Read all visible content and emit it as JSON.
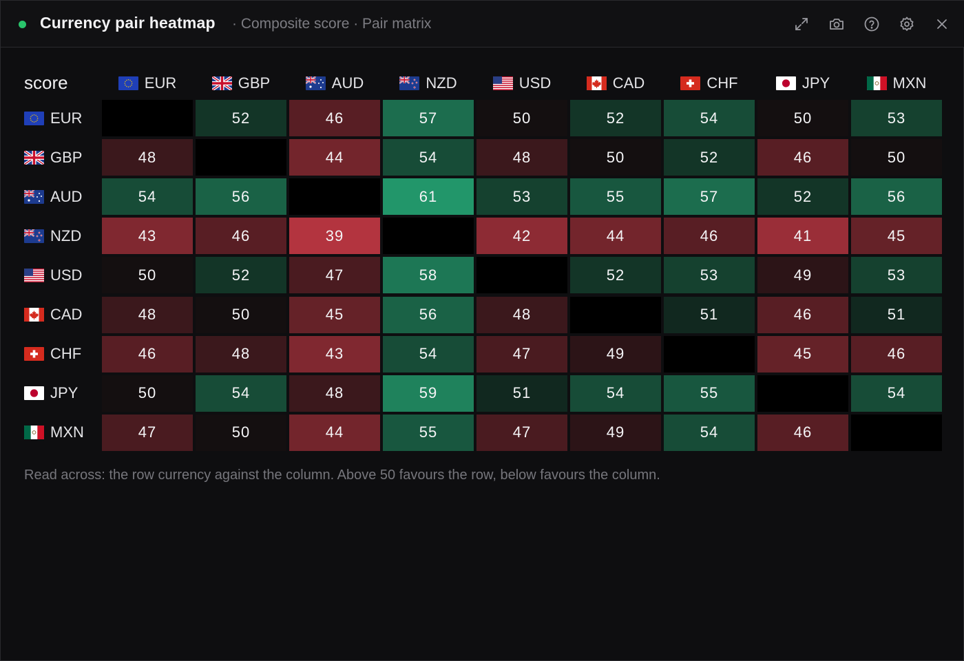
{
  "window": {
    "title": "Currency pair heatmap",
    "subtitle": "· Composite score · Pair matrix",
    "status_color": "#29c46b",
    "toolbar_icons": [
      "expand-icon",
      "camera-icon",
      "help-icon",
      "gear-icon",
      "close-icon"
    ]
  },
  "corner_label": "score",
  "currencies": [
    {
      "code": "EUR",
      "flag": "eu-flag-icon"
    },
    {
      "code": "GBP",
      "flag": "gb-flag-icon"
    },
    {
      "code": "AUD",
      "flag": "au-flag-icon"
    },
    {
      "code": "NZD",
      "flag": "nz-flag-icon"
    },
    {
      "code": "USD",
      "flag": "us-flag-icon"
    },
    {
      "code": "CAD",
      "flag": "ca-flag-icon"
    },
    {
      "code": "CHF",
      "flag": "ch-flag-icon"
    },
    {
      "code": "JPY",
      "flag": "jp-flag-icon"
    },
    {
      "code": "MXN",
      "flag": "mx-flag-icon"
    }
  ],
  "chart_data": {
    "type": "heatmap",
    "title": "Currency pair heatmap",
    "x_categories": [
      "EUR",
      "GBP",
      "AUD",
      "NZD",
      "USD",
      "CAD",
      "CHF",
      "JPY",
      "MXN"
    ],
    "y_categories": [
      "EUR",
      "GBP",
      "AUD",
      "NZD",
      "USD",
      "CAD",
      "CHF",
      "JPY",
      "MXN"
    ],
    "values": [
      [
        null,
        52,
        46,
        57,
        50,
        52,
        54,
        50,
        53
      ],
      [
        48,
        null,
        44,
        54,
        48,
        50,
        52,
        46,
        50
      ],
      [
        54,
        56,
        null,
        61,
        53,
        55,
        57,
        52,
        56
      ],
      [
        43,
        46,
        39,
        null,
        42,
        44,
        46,
        41,
        45
      ],
      [
        50,
        52,
        47,
        58,
        null,
        52,
        53,
        49,
        53
      ],
      [
        48,
        50,
        45,
        56,
        48,
        null,
        51,
        46,
        51
      ],
      [
        46,
        48,
        43,
        54,
        47,
        49,
        null,
        45,
        46
      ],
      [
        50,
        54,
        48,
        59,
        51,
        54,
        55,
        null,
        54
      ],
      [
        47,
        50,
        44,
        55,
        47,
        49,
        54,
        46,
        null
      ]
    ],
    "midpoint": 50,
    "colors": {
      "positive": "#22966a",
      "negative": "#b3343f",
      "neutral": "#101a16",
      "diagonal": "#000000"
    }
  },
  "footnote": "Read across: the row currency against the column. Above 50 favours the row, below favours the column."
}
